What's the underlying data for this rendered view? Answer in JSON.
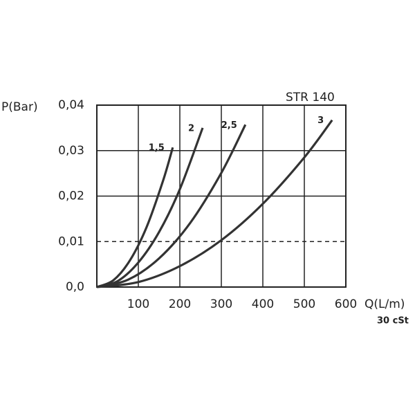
{
  "chart_data": {
    "type": "line",
    "title": "STR 140",
    "y_label": "P(Bar)",
    "x_label": "Q(L/m)",
    "note": "30 cSt",
    "xlim": [
      0,
      600
    ],
    "ylim": [
      0,
      0.04
    ],
    "xticks": [
      100,
      200,
      300,
      400,
      500,
      600
    ],
    "yticks": [
      {
        "value": 0,
        "label": "0,0"
      },
      {
        "value": 0.01,
        "label": "0,01"
      },
      {
        "value": 0.02,
        "label": "0,02"
      },
      {
        "value": 0.03,
        "label": "0,03"
      },
      {
        "value": 0.04,
        "label": "0,04"
      }
    ],
    "grid": true,
    "reference_line": 0.01,
    "series": [
      {
        "name": "1,5",
        "color": "#333333",
        "x": [
          0,
          40,
          80,
          120,
          160,
          183
        ],
        "values": [
          0,
          0.0015,
          0.0059,
          0.0132,
          0.0235,
          0.0307
        ]
      },
      {
        "name": "2",
        "color": "#333333",
        "x": [
          0,
          50,
          100,
          150,
          200,
          255
        ],
        "values": [
          0,
          0.0013,
          0.0054,
          0.0121,
          0.0215,
          0.035
        ]
      },
      {
        "name": "2,5",
        "color": "#333333",
        "x": [
          0,
          75,
          150,
          225,
          300,
          358
        ],
        "values": [
          0,
          0.0016,
          0.0063,
          0.0141,
          0.0251,
          0.0357
        ]
      },
      {
        "name": "3",
        "color": "#333333",
        "x": [
          0,
          100,
          200,
          300,
          400,
          500,
          567
        ],
        "values": [
          0,
          0.0011,
          0.0046,
          0.0103,
          0.0183,
          0.0285,
          0.0367
        ]
      }
    ]
  }
}
